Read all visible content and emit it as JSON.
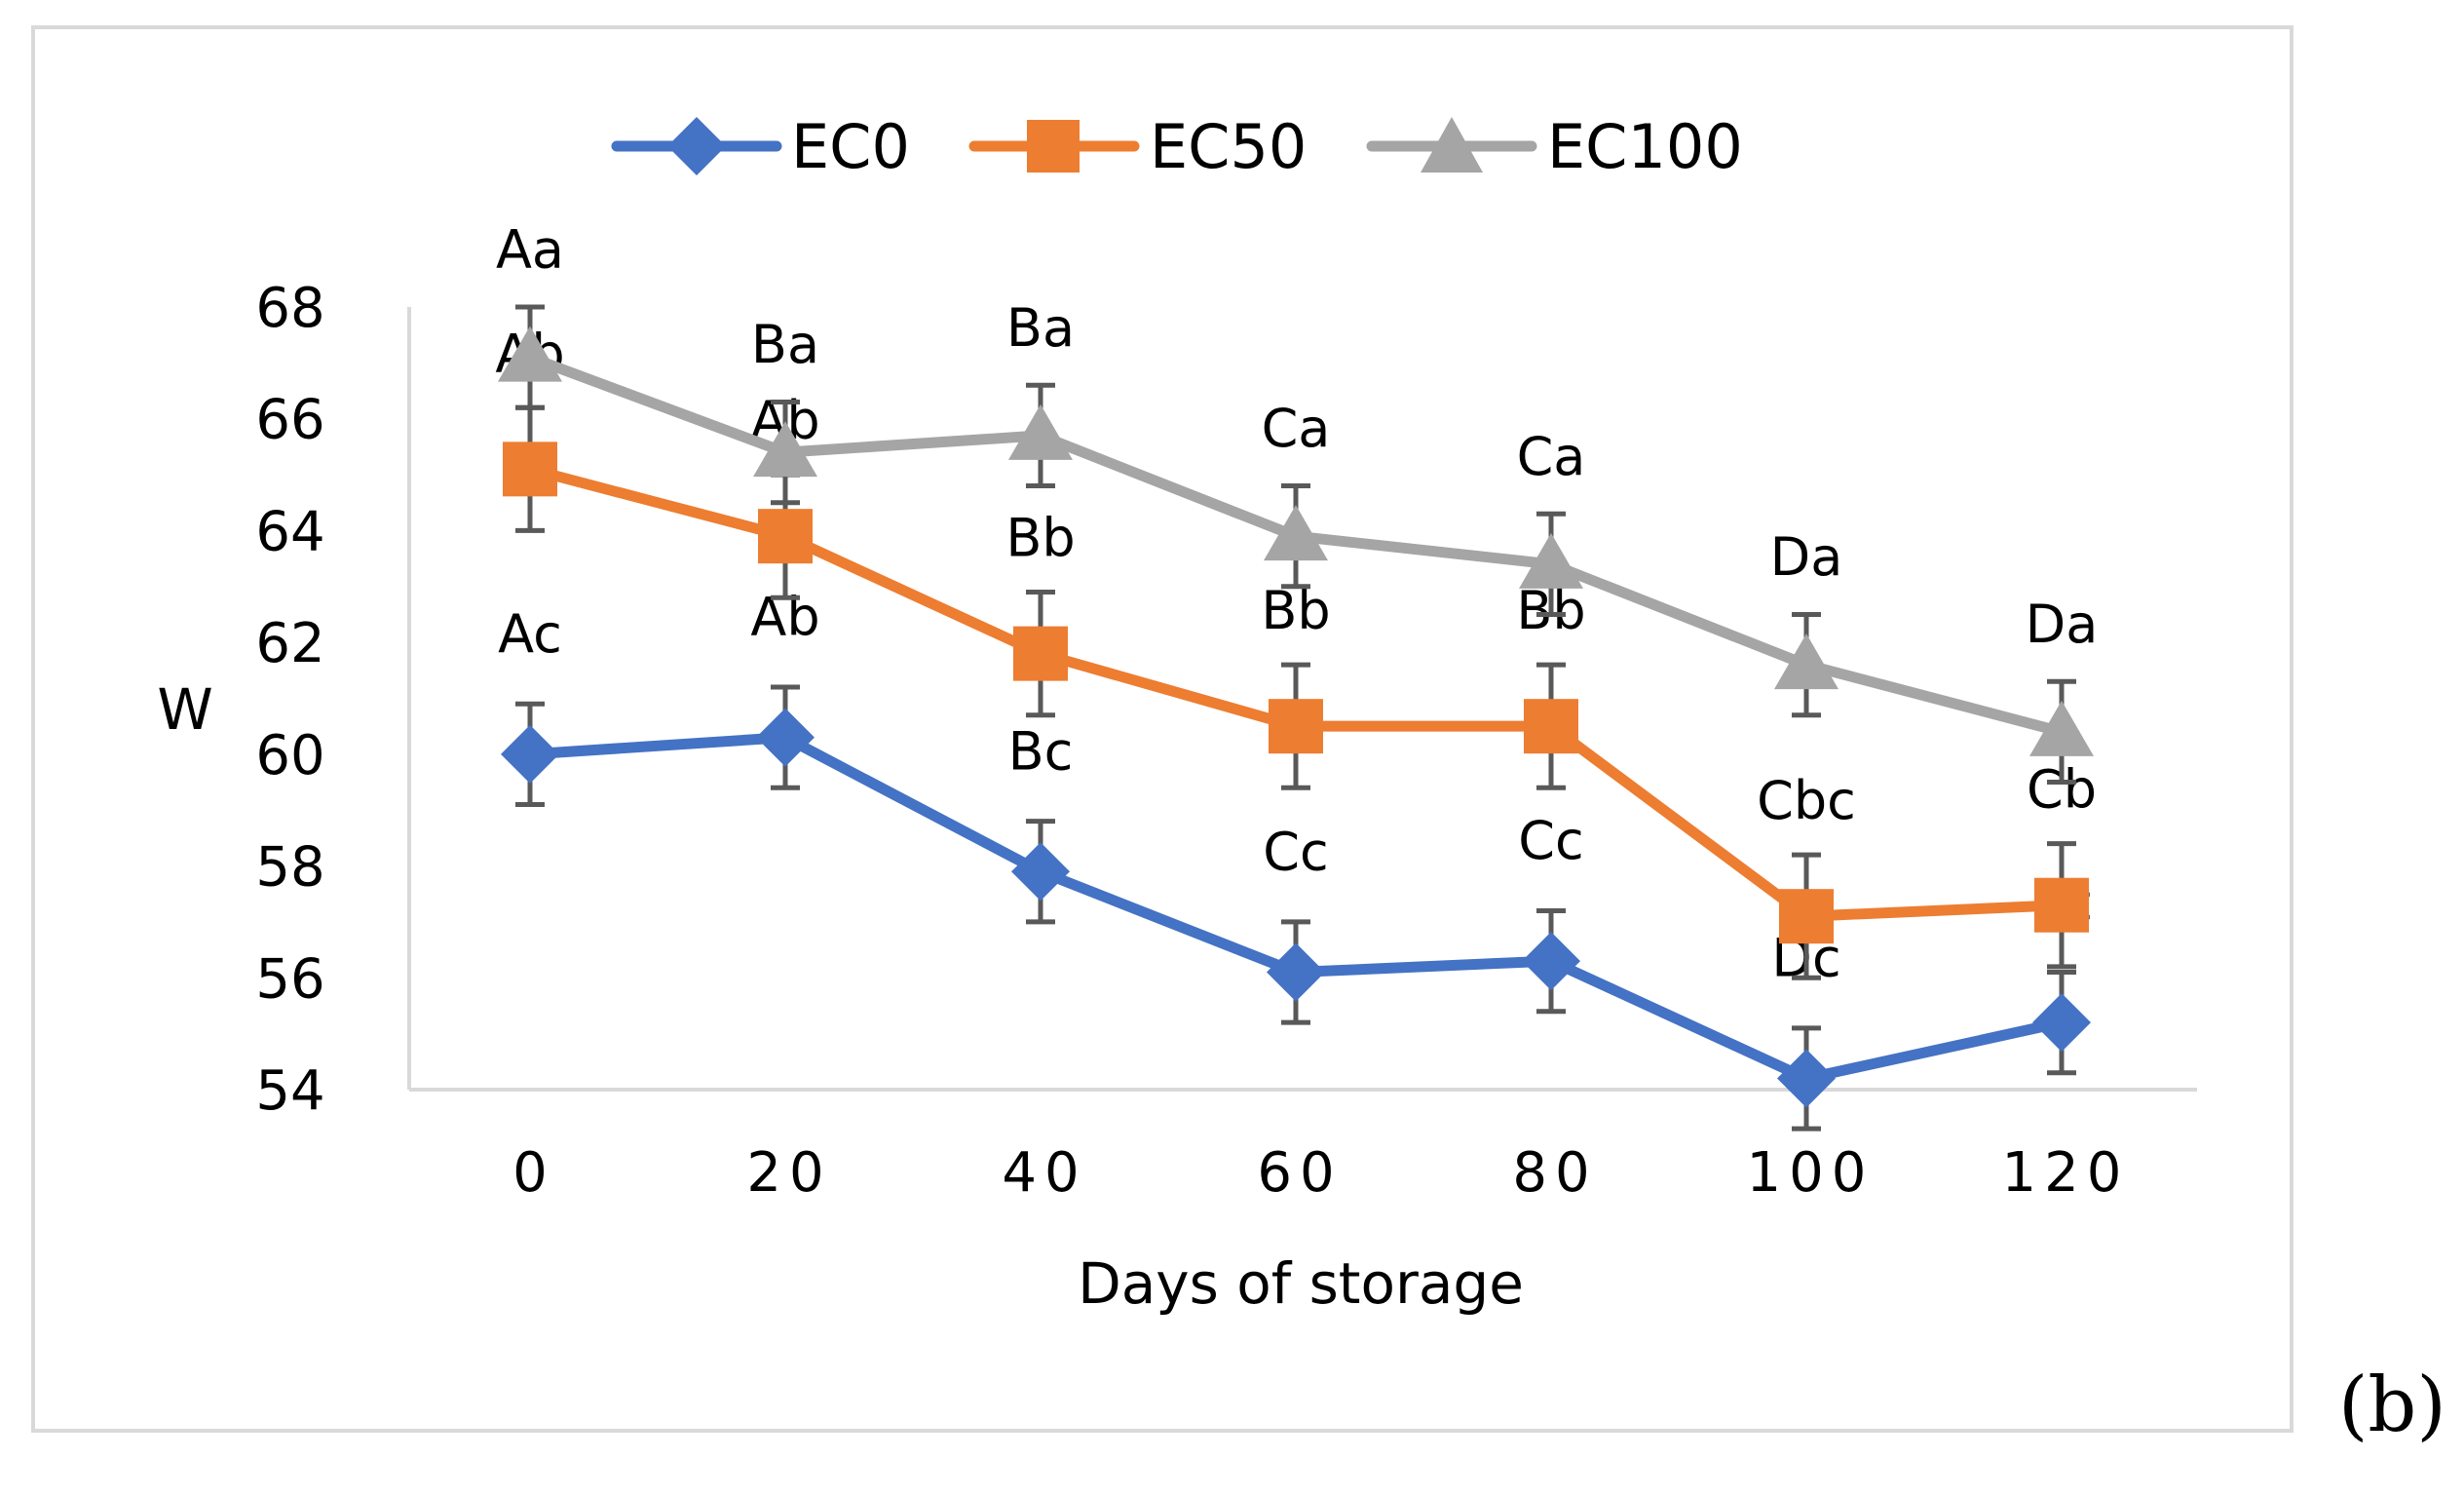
{
  "panel_label": "(b)",
  "chart_data": {
    "type": "line",
    "title": "",
    "xlabel": "Days of storage",
    "ylabel": "W",
    "x": [
      0,
      20,
      40,
      60,
      80,
      100,
      120
    ],
    "x_tick_labels": [
      "0",
      "20",
      "40",
      "60",
      "80",
      "100",
      "120"
    ],
    "ylim": [
      54,
      68
    ],
    "y_ticks": [
      54,
      56,
      58,
      60,
      62,
      64,
      66,
      68
    ],
    "y_tick_labels": [
      "54",
      "56",
      "58",
      "60",
      "62",
      "64",
      "66",
      "68"
    ],
    "grid": false,
    "legend_position": "top-center",
    "series": [
      {
        "name": "EC0",
        "color": "#4472C4",
        "marker": "diamond",
        "values": [
          60.0,
          60.3,
          57.9,
          56.1,
          56.3,
          54.2,
          55.2
        ],
        "error": [
          0.9,
          0.9,
          0.9,
          0.9,
          0.9,
          0.9,
          0.9
        ],
        "labels": [
          "Ac",
          "Ab",
          "Bc",
          "Cc",
          "Cc",
          "Dc",
          "Ec"
        ]
      },
      {
        "name": "EC50",
        "color": "#ED7D31",
        "marker": "square",
        "values": [
          65.1,
          63.9,
          61.8,
          60.5,
          60.5,
          57.1,
          57.3
        ],
        "error": [
          1.1,
          1.1,
          1.1,
          1.1,
          1.1,
          1.1,
          1.1
        ],
        "labels": [
          "Ab",
          "Ab",
          "Bb",
          "Bb",
          "Bb",
          "Cbc",
          "Cb"
        ]
      },
      {
        "name": "EC100",
        "color": "#A5A5A5",
        "marker": "triangle",
        "values": [
          67.1,
          65.4,
          65.7,
          63.9,
          63.4,
          61.6,
          60.4
        ],
        "error": [
          0.9,
          0.9,
          0.9,
          0.9,
          0.9,
          0.9,
          0.9
        ],
        "labels": [
          "Aa",
          "Ba",
          "Ba",
          "Ca",
          "Ca",
          "Da",
          "Da"
        ]
      }
    ]
  }
}
